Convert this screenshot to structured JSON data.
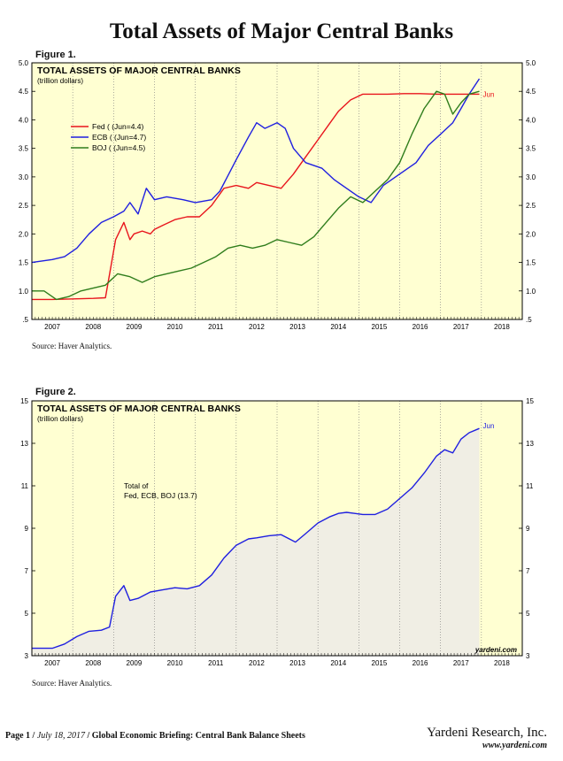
{
  "page_title": "Total Assets of Major Central Banks",
  "footer": {
    "page": "Page 1",
    "date": "July 18, 2017",
    "briefing": "Global Economic Briefing: Central Bank Balance Sheets",
    "company": "Yardeni Research, Inc.",
    "url": "www.yardeni.com"
  },
  "colors": {
    "fed": "#e8141c",
    "ecb": "#1f1fe0",
    "boj": "#2f7d1c",
    "panel": "#ffffd2",
    "fill": "#f0eee4"
  },
  "chart_data": [
    {
      "type": "line",
      "figure_label": "Figure 1.",
      "title": "TOTAL ASSETS OF MAJOR CENTRAL BANKS",
      "subtitle": "(trillion dollars)",
      "source": "Source: Haver Analytics.",
      "end_label": "Jun",
      "xlim": [
        2006.5,
        2018.5
      ],
      "ylim": [
        0.5,
        5.0
      ],
      "yticks": [
        0.5,
        1.0,
        1.5,
        2.0,
        2.5,
        3.0,
        3.5,
        4.0,
        4.5,
        5.0
      ],
      "ytick_labels": [
        ".5",
        "1.0",
        "1.5",
        "2.0",
        "2.5",
        "3.0",
        "3.5",
        "4.0",
        "4.5",
        "5.0"
      ],
      "xtick_labels": [
        "2007",
        "2008",
        "2009",
        "2010",
        "2011",
        "2012",
        "2013",
        "2014",
        "2015",
        "2016",
        "2017",
        "2018"
      ],
      "legend": [
        "Fed ( (Jun=4.4)",
        "ECB ( (Jun=4.7)",
        "BOJ ( (Jun=4.5)"
      ],
      "series": [
        {
          "name": "Fed",
          "x": [
            2006.5,
            2007.0,
            2007.5,
            2008.0,
            2008.3,
            2008.55,
            2008.75,
            2008.9,
            2009.0,
            2009.2,
            2009.4,
            2009.5,
            2009.7,
            2010.0,
            2010.3,
            2010.6,
            2010.9,
            2011.2,
            2011.5,
            2011.8,
            2012.0,
            2012.3,
            2012.6,
            2012.9,
            2013.2,
            2013.5,
            2013.8,
            2014.0,
            2014.3,
            2014.6,
            2014.9,
            2015.2,
            2015.6,
            2016.0,
            2016.4,
            2016.8,
            2017.0,
            2017.45
          ],
          "values": [
            0.85,
            0.85,
            0.86,
            0.87,
            0.88,
            1.9,
            2.2,
            1.9,
            2.0,
            2.05,
            2.0,
            2.08,
            2.15,
            2.25,
            2.3,
            2.3,
            2.5,
            2.8,
            2.85,
            2.8,
            2.9,
            2.85,
            2.8,
            3.05,
            3.35,
            3.65,
            3.95,
            4.15,
            4.35,
            4.45,
            4.45,
            4.45,
            4.46,
            4.46,
            4.45,
            4.45,
            4.45,
            4.45
          ]
        },
        {
          "name": "ECB",
          "x": [
            2006.5,
            2007.0,
            2007.3,
            2007.6,
            2007.9,
            2008.2,
            2008.5,
            2008.75,
            2008.9,
            2009.1,
            2009.3,
            2009.5,
            2009.8,
            2010.2,
            2010.5,
            2010.9,
            2011.1,
            2011.5,
            2011.8,
            2012.0,
            2012.2,
            2012.5,
            2012.7,
            2012.9,
            2013.2,
            2013.6,
            2013.9,
            2014.2,
            2014.5,
            2014.8,
            2015.1,
            2015.5,
            2015.9,
            2016.2,
            2016.5,
            2016.8,
            2017.0,
            2017.2,
            2017.45
          ],
          "values": [
            1.5,
            1.55,
            1.6,
            1.75,
            2.0,
            2.2,
            2.3,
            2.4,
            2.55,
            2.35,
            2.8,
            2.6,
            2.65,
            2.6,
            2.55,
            2.6,
            2.75,
            3.3,
            3.7,
            3.95,
            3.85,
            3.95,
            3.85,
            3.5,
            3.25,
            3.15,
            2.95,
            2.8,
            2.65,
            2.55,
            2.85,
            3.05,
            3.25,
            3.55,
            3.75,
            3.95,
            4.2,
            4.45,
            4.72
          ]
        },
        {
          "name": "BOJ",
          "x": [
            2006.5,
            2006.8,
            2007.1,
            2007.4,
            2007.7,
            2008.0,
            2008.3,
            2008.6,
            2008.9,
            2009.2,
            2009.5,
            2009.8,
            2010.1,
            2010.4,
            2010.7,
            2011.0,
            2011.3,
            2011.6,
            2011.9,
            2012.2,
            2012.5,
            2012.8,
            2013.1,
            2013.4,
            2013.7,
            2014.0,
            2014.3,
            2014.6,
            2014.9,
            2015.2,
            2015.5,
            2015.8,
            2016.1,
            2016.4,
            2016.6,
            2016.8,
            2017.0,
            2017.2,
            2017.45
          ],
          "values": [
            1.0,
            1.0,
            0.85,
            0.9,
            1.0,
            1.05,
            1.1,
            1.3,
            1.25,
            1.15,
            1.25,
            1.3,
            1.35,
            1.4,
            1.5,
            1.6,
            1.75,
            1.8,
            1.75,
            1.8,
            1.9,
            1.85,
            1.8,
            1.95,
            2.2,
            2.45,
            2.65,
            2.55,
            2.75,
            2.95,
            3.25,
            3.75,
            4.2,
            4.5,
            4.45,
            4.1,
            4.3,
            4.45,
            4.5
          ]
        }
      ]
    },
    {
      "type": "area",
      "figure_label": "Figure 2.",
      "title": "TOTAL ASSETS OF MAJOR CENTRAL BANKS",
      "subtitle": "(trillion dollars)",
      "source": "Source: Haver Analytics.",
      "annotation": [
        "Total of",
        "Fed, ECB, BOJ (13.7)"
      ],
      "watermark": "yardeni.com",
      "end_label": "Jun",
      "xlim": [
        2006.5,
        2018.5
      ],
      "ylim": [
        3,
        15
      ],
      "yticks": [
        3,
        5,
        7,
        9,
        11,
        13,
        15
      ],
      "ytick_labels": [
        "3",
        "5",
        "7",
        "9",
        "11",
        "13",
        "15"
      ],
      "xtick_labels": [
        "2007",
        "2008",
        "2009",
        "2010",
        "2011",
        "2012",
        "2013",
        "2014",
        "2015",
        "2016",
        "2017",
        "2018"
      ],
      "series": [
        {
          "name": "Total of Fed, ECB, BOJ",
          "x": [
            2006.5,
            2007.0,
            2007.3,
            2007.6,
            2007.9,
            2008.2,
            2008.4,
            2008.55,
            2008.75,
            2008.9,
            2009.1,
            2009.4,
            2009.7,
            2010.0,
            2010.3,
            2010.6,
            2010.9,
            2011.2,
            2011.5,
            2011.8,
            2012.0,
            2012.3,
            2012.6,
            2012.8,
            2012.95,
            2013.2,
            2013.5,
            2013.8,
            2014.0,
            2014.2,
            2014.4,
            2014.6,
            2014.9,
            2015.2,
            2015.5,
            2015.8,
            2016.1,
            2016.4,
            2016.6,
            2016.8,
            2017.0,
            2017.2,
            2017.45
          ],
          "values": [
            3.35,
            3.35,
            3.55,
            3.9,
            4.15,
            4.2,
            4.35,
            5.8,
            6.3,
            5.6,
            5.7,
            6.0,
            6.1,
            6.2,
            6.15,
            6.3,
            6.8,
            7.6,
            8.2,
            8.5,
            8.55,
            8.65,
            8.7,
            8.5,
            8.35,
            8.75,
            9.25,
            9.55,
            9.7,
            9.75,
            9.7,
            9.65,
            9.65,
            9.9,
            10.4,
            10.9,
            11.6,
            12.4,
            12.7,
            12.55,
            13.2,
            13.5,
            13.7
          ]
        }
      ]
    }
  ]
}
